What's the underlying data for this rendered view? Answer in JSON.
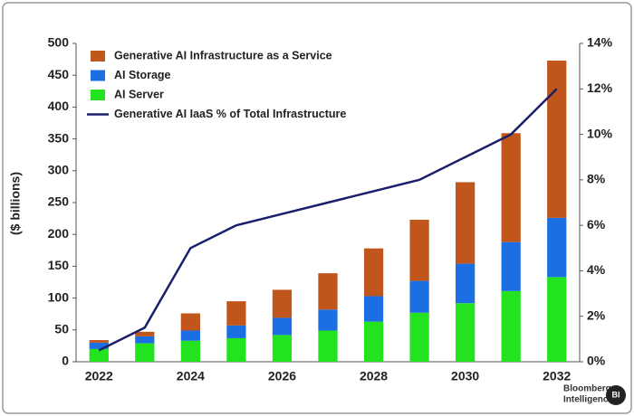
{
  "chart_data": {
    "type": "bar",
    "y_label": "($ billions)",
    "categories": [
      "2022",
      null,
      "2024",
      null,
      "2026",
      null,
      "2028",
      null,
      "2030",
      null,
      "2032"
    ],
    "series": [
      {
        "name": "AI Server",
        "color": "#22e31e",
        "values": [
          20,
          29,
          33,
          37,
          42,
          49,
          63,
          77,
          92,
          111,
          133
        ]
      },
      {
        "name": "AI Storage",
        "color": "#1c6fe3",
        "values": [
          10,
          11,
          16,
          20,
          27,
          33,
          40,
          50,
          62,
          77,
          93
        ]
      },
      {
        "name": "Generative AI Infrastructure as a Service",
        "color": "#c0561b",
        "values": [
          4,
          7,
          27,
          38,
          44,
          57,
          75,
          96,
          128,
          171,
          247
        ]
      },
      {
        "name": "Generative AI IaaS % of Total Infrastructure",
        "color": "#1b1f6b",
        "type": "line",
        "axis": "y2",
        "values": [
          0.5,
          1.5,
          5,
          6,
          6.5,
          7,
          7.5,
          8,
          9,
          10,
          12
        ]
      }
    ],
    "stacked": true,
    "ylim": [
      0,
      500
    ],
    "yticks": [
      0,
      50,
      100,
      150,
      200,
      250,
      300,
      350,
      400,
      450,
      500
    ],
    "y2lim": [
      0,
      14
    ],
    "y2ticks": [
      {
        "value": 0,
        "label": "0%"
      },
      {
        "value": 2,
        "label": "2%"
      },
      {
        "value": 4,
        "label": "4%"
      },
      {
        "value": 6,
        "label": "6%"
      },
      {
        "value": 8,
        "label": "8%"
      },
      {
        "value": 10,
        "label": "10%"
      },
      {
        "value": 12,
        "label": "12%"
      },
      {
        "value": 14,
        "label": "14%"
      }
    ],
    "grid": false,
    "legend": "top-left",
    "source": {
      "lines": [
        "Bloomberg",
        "Intelligence"
      ],
      "logo": "BI"
    }
  }
}
